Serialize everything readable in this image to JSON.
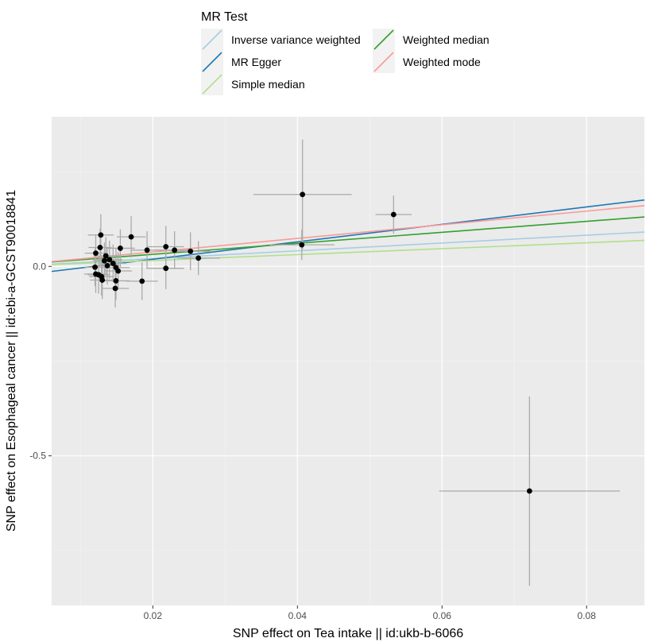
{
  "chart_data": {
    "type": "scatter",
    "title": "",
    "xlabel": "SNP effect on Tea intake || id:ukb-b-6066",
    "ylabel": "SNP effect on Esophageal cancer || id:ebi-a-GCST90018841",
    "xlim": [
      0.006,
      0.088
    ],
    "ylim": [
      -0.895,
      0.395
    ],
    "x_ticks": [
      0.02,
      0.04,
      0.06,
      0.08
    ],
    "x_tick_labels": [
      "0.02",
      "0.04",
      "0.06",
      "0.08"
    ],
    "y_ticks": [
      0.0,
      -0.5
    ],
    "y_tick_labels": [
      "0.0",
      "-0.5"
    ],
    "grid": true,
    "legend": {
      "title": "MR Test",
      "position": "top",
      "entries": [
        {
          "name": "Inverse variance weighted",
          "color": "#a6cee3"
        },
        {
          "name": "MR Egger",
          "color": "#1f78b4"
        },
        {
          "name": "Simple median",
          "color": "#b2df8a"
        },
        {
          "name": "Weighted median",
          "color": "#33a02c"
        },
        {
          "name": "Weighted mode",
          "color": "#fb9a99"
        }
      ]
    },
    "points": [
      {
        "x": 0.0121,
        "y": 0.035,
        "xerr": 0.0015,
        "yerr": 0.05
      },
      {
        "x": 0.0128,
        "y": 0.083,
        "xerr": 0.0018,
        "yerr": 0.055
      },
      {
        "x": 0.0127,
        "y": 0.05,
        "xerr": 0.0016,
        "yerr": 0.05
      },
      {
        "x": 0.0135,
        "y": 0.028,
        "xerr": 0.0017,
        "yerr": 0.05
      },
      {
        "x": 0.0133,
        "y": 0.015,
        "xerr": 0.0016,
        "yerr": 0.048
      },
      {
        "x": 0.014,
        "y": 0.018,
        "xerr": 0.0018,
        "yerr": 0.05
      },
      {
        "x": 0.0145,
        "y": 0.008,
        "xerr": 0.0018,
        "yerr": 0.05
      },
      {
        "x": 0.012,
        "y": -0.002,
        "xerr": 0.0015,
        "yerr": 0.05
      },
      {
        "x": 0.0125,
        "y": -0.022,
        "xerr": 0.0015,
        "yerr": 0.05
      },
      {
        "x": 0.0121,
        "y": -0.02,
        "xerr": 0.0016,
        "yerr": 0.05
      },
      {
        "x": 0.0129,
        "y": -0.027,
        "xerr": 0.0017,
        "yerr": 0.05
      },
      {
        "x": 0.013,
        "y": -0.036,
        "xerr": 0.0017,
        "yerr": 0.05
      },
      {
        "x": 0.0137,
        "y": 0.002,
        "xerr": 0.0017,
        "yerr": 0.05
      },
      {
        "x": 0.0149,
        "y": -0.003,
        "xerr": 0.0019,
        "yerr": 0.05
      },
      {
        "x": 0.0152,
        "y": -0.012,
        "xerr": 0.0019,
        "yerr": 0.05
      },
      {
        "x": 0.0149,
        "y": -0.038,
        "xerr": 0.0019,
        "yerr": 0.05
      },
      {
        "x": 0.0148,
        "y": -0.058,
        "xerr": 0.0019,
        "yerr": 0.05
      },
      {
        "x": 0.0155,
        "y": 0.048,
        "xerr": 0.002,
        "yerr": 0.05
      },
      {
        "x": 0.017,
        "y": 0.078,
        "xerr": 0.002,
        "yerr": 0.055
      },
      {
        "x": 0.0185,
        "y": -0.039,
        "xerr": 0.0022,
        "yerr": 0.05
      },
      {
        "x": 0.0192,
        "y": 0.043,
        "xerr": 0.0022,
        "yerr": 0.05
      },
      {
        "x": 0.0218,
        "y": 0.052,
        "xerr": 0.0025,
        "yerr": 0.055
      },
      {
        "x": 0.023,
        "y": 0.043,
        "xerr": 0.0026,
        "yerr": 0.05
      },
      {
        "x": 0.0218,
        "y": -0.005,
        "xerr": 0.0025,
        "yerr": 0.055
      },
      {
        "x": 0.0252,
        "y": 0.04,
        "xerr": 0.0028,
        "yerr": 0.05
      },
      {
        "x": 0.0263,
        "y": 0.022,
        "xerr": 0.003,
        "yerr": 0.045
      },
      {
        "x": 0.0406,
        "y": 0.057,
        "xerr": 0.0045,
        "yerr": 0.04
      },
      {
        "x": 0.0407,
        "y": 0.19,
        "xerr": 0.0068,
        "yerr": 0.145
      },
      {
        "x": 0.0533,
        "y": 0.137,
        "xerr": 0.0025,
        "yerr": 0.05
      },
      {
        "x": 0.0721,
        "y": -0.593,
        "xerr": 0.0125,
        "yerr": 0.25
      }
    ],
    "lines": [
      {
        "name": "Inverse variance weighted",
        "slope": 1.03,
        "intercept": 0.0,
        "color": "#a6cee3"
      },
      {
        "name": "MR Egger",
        "slope": 2.3,
        "intercept": -0.027,
        "color": "#1f78b4"
      },
      {
        "name": "Simple median",
        "slope": 0.78,
        "intercept": 0.0,
        "color": "#b2df8a"
      },
      {
        "name": "Weighted median",
        "slope": 1.45,
        "intercept": 0.003,
        "color": "#33a02c"
      },
      {
        "name": "Weighted mode",
        "slope": 1.8,
        "intercept": 0.002,
        "color": "#fb9a99"
      }
    ]
  }
}
